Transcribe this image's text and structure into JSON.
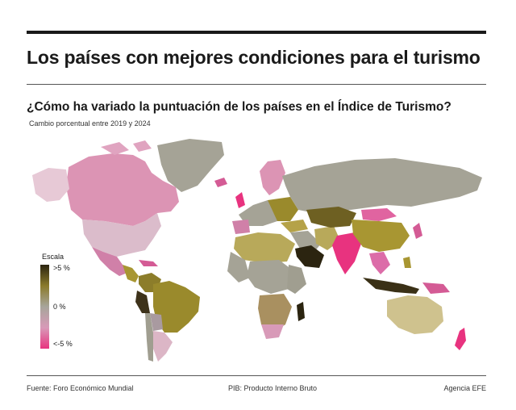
{
  "title": "Los países con mejores condiciones para el turismo",
  "subtitle": "¿Cómo ha variado la puntuación de los países en el Índice de Turismo?",
  "caption": "Cambio porcentual entre 2019 y 2024",
  "legend": {
    "title": "Escala",
    "high": ">5 %",
    "mid": "0 %",
    "low": "<-5 %",
    "colors": {
      "high": "#2b2410",
      "upper": "#8a7a2a",
      "mid": "#a7a59a",
      "lower": "#d89ab8",
      "low": "#e8337f"
    }
  },
  "footer": {
    "source": "Fuente: Foro Económico Mundial",
    "note": "PIB: Producto Interno Bruto",
    "agency": "Agencia EFE"
  }
}
